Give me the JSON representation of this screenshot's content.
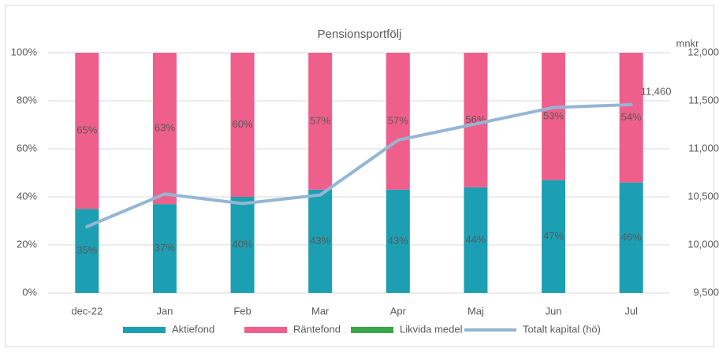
{
  "chart_data": {
    "type": "bar",
    "stacked": true,
    "title": "Pensionsportfölj",
    "y2_label": "mnkr",
    "categories": [
      "dec-22",
      "Jan",
      "Feb",
      "Mar",
      "Apr",
      "Maj",
      "Jun",
      "Jul"
    ],
    "ylim": [
      0,
      100
    ],
    "yticks": [
      {
        "value": 0,
        "label": "0%"
      },
      {
        "value": 20,
        "label": "20%"
      },
      {
        "value": 40,
        "label": "40%"
      },
      {
        "value": 60,
        "label": "60%"
      },
      {
        "value": 80,
        "label": "80%"
      },
      {
        "value": 100,
        "label": "100%"
      }
    ],
    "y2lim": [
      9500,
      12000
    ],
    "y2ticks": [
      {
        "value": 9500,
        "label": "9,500"
      },
      {
        "value": 10000,
        "label": "10,000"
      },
      {
        "value": 10500,
        "label": "10,500"
      },
      {
        "value": 11000,
        "label": "11,000"
      },
      {
        "value": 11500,
        "label": "11,500"
      },
      {
        "value": 12000,
        "label": "12,000"
      }
    ],
    "grid": true,
    "legend": "bottom",
    "series": [
      {
        "name": "Aktiefond",
        "color": "#1d9fb3",
        "values": [
          35,
          37,
          40,
          43,
          43,
          44,
          47,
          46
        ],
        "value_labels": [
          "35%",
          "37%",
          "40%",
          "43%",
          "43%",
          "44%",
          "47%",
          "46%"
        ]
      },
      {
        "name": "Räntefond",
        "color": "#ef5f8c",
        "values": [
          65,
          63,
          60,
          57,
          57,
          56,
          53,
          54
        ],
        "value_labels": [
          "65%",
          "63%",
          "60%",
          "57%",
          "57%",
          "56%",
          "53%",
          "54%"
        ]
      },
      {
        "name": "Likvida medel",
        "color": "#3aa64a",
        "values": [
          0,
          0,
          0,
          0,
          0,
          0,
          0,
          0
        ]
      },
      {
        "name": "Totalt kapital (hö)",
        "type": "line",
        "axis": "y2",
        "color": "#94b6d3",
        "values": [
          10190,
          10530,
          10430,
          10520,
          11090,
          11260,
          11430,
          11460
        ],
        "value_labels": [
          null,
          null,
          null,
          null,
          null,
          null,
          null,
          "11,460"
        ]
      }
    ]
  }
}
